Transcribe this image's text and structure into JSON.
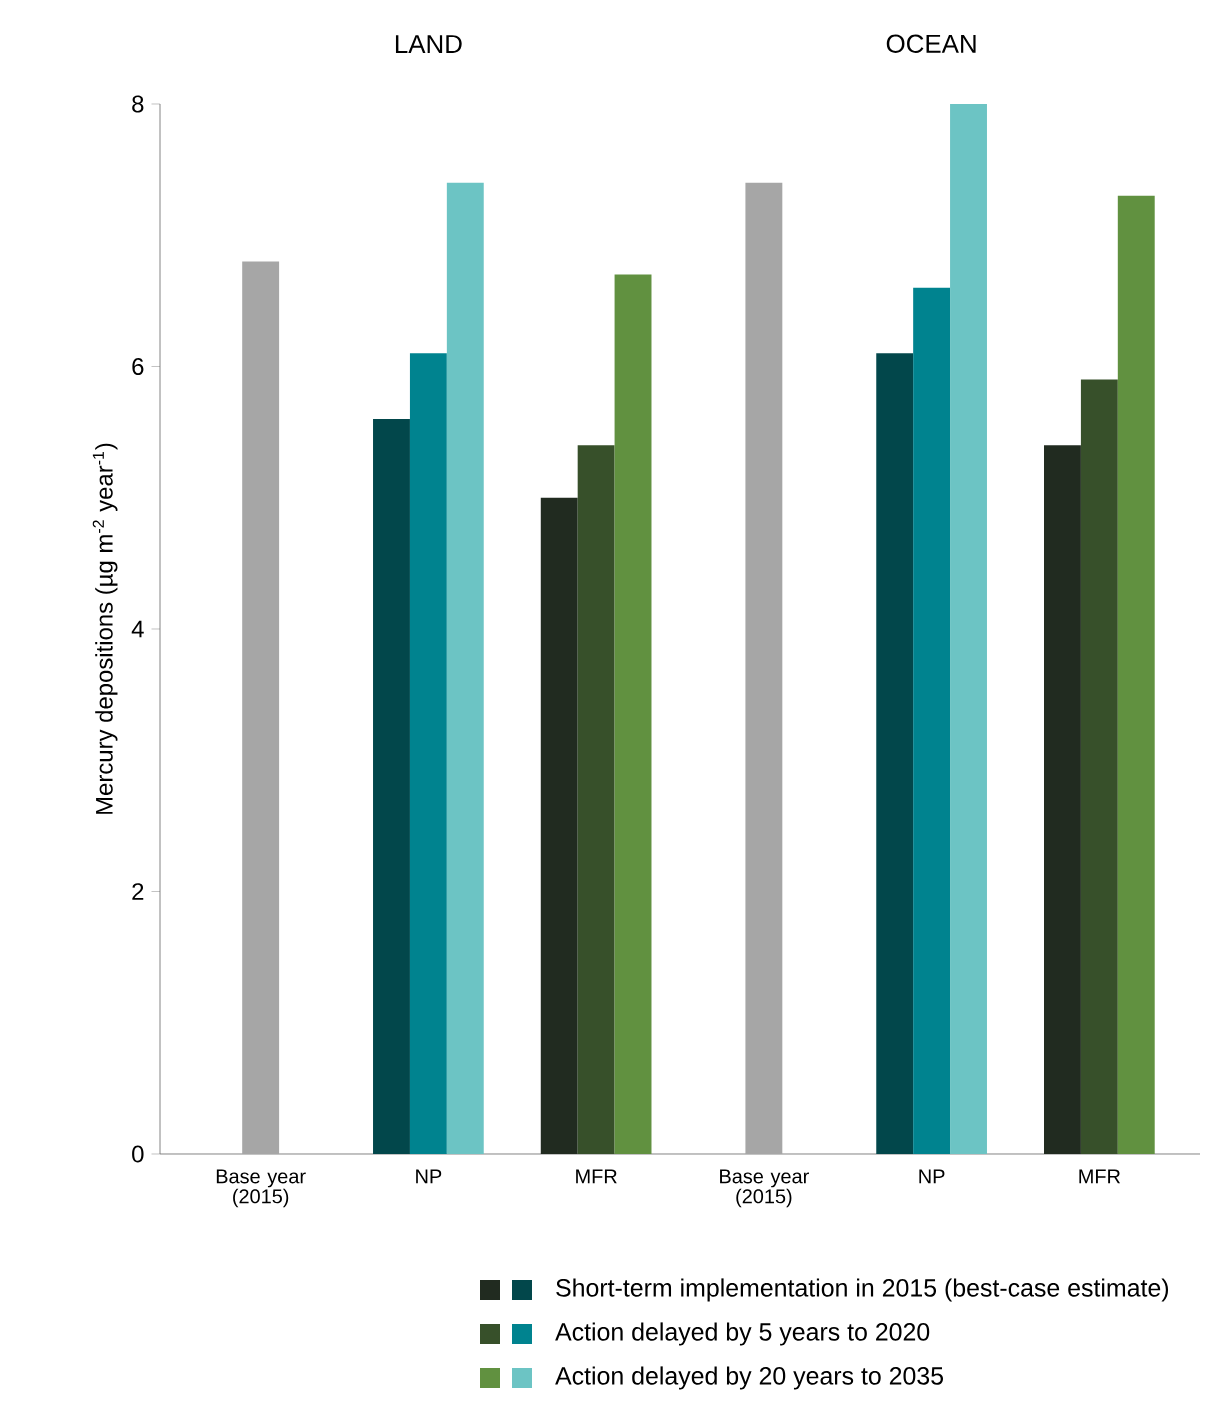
{
  "chart_data": {
    "type": "bar",
    "annotations": [
      "LAND",
      "OCEAN"
    ],
    "ylabel": "Mercury depositions (µg m$^{-2}$ year$^{-1}$)",
    "categories": [
      "Base year (2015)",
      "NP",
      "MFR",
      "Base year (2015)",
      "NP",
      "MFR"
    ],
    "series": [
      {
        "color": "#a6a6a6",
        "values": [
          6.8,
          null,
          null,
          7.4,
          null,
          null
        ]
      },
      {
        "name": "Short-term implementation in 2015 (best-case estimate)",
        "colors": [
          null,
          "#02474b",
          "#212b20",
          null,
          "#02474b",
          "#212b20"
        ],
        "values": [
          null,
          5.6,
          5.0,
          null,
          6.1,
          5.4
        ]
      },
      {
        "name": "Action delayed by 5 years to 2020",
        "colors": [
          null,
          "#00838f",
          "#37502a",
          null,
          "#00838f",
          "#37502a"
        ],
        "values": [
          null,
          6.1,
          5.4,
          null,
          6.6,
          5.9
        ]
      },
      {
        "name": "Action delayed by 20 years to 2035",
        "colors": [
          null,
          "#6cc4c4",
          "#619140",
          null,
          "#6cc4c4",
          "#619140"
        ],
        "values": [
          null,
          7.4,
          6.7,
          null,
          8.0,
          7.3
        ]
      }
    ],
    "ylim": [
      0,
      8
    ],
    "yticks": [
      0,
      2,
      4,
      6,
      8
    ],
    "legend": "bottom"
  }
}
